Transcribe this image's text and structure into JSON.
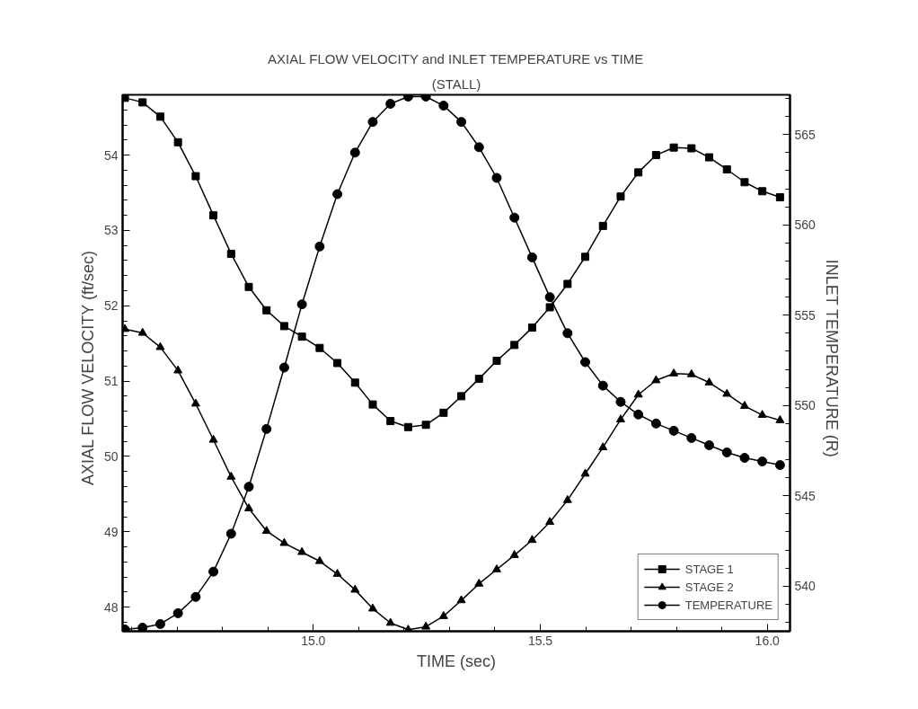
{
  "chart_data": {
    "type": "line",
    "title": "AXIAL FLOW VELOCITY and INLET TEMPERATURE vs TIME",
    "subtitle": "(STALL)",
    "xlabel": "TIME (sec)",
    "ylabel": "AXIAL FLOW VELOCITY   (ft/sec)",
    "y2label": "INLET TEMPERATURE   (R)",
    "x": [
      14.585,
      14.624,
      14.663,
      14.702,
      14.741,
      14.78,
      14.819,
      14.858,
      14.897,
      14.936,
      14.975,
      15.014,
      15.053,
      15.092,
      15.131,
      15.17,
      15.209,
      15.248,
      15.287,
      15.326,
      15.365,
      15.404,
      15.443,
      15.482,
      15.521,
      15.56,
      15.599,
      15.638,
      15.677,
      15.716,
      15.755,
      15.794,
      15.833,
      15.872,
      15.911,
      15.95,
      15.989,
      16.028
    ],
    "series": [
      {
        "name": "STAGE 1",
        "color": "#000000",
        "marker": "square",
        "values": [
          54.76,
          54.7,
          54.51,
          54.17,
          53.72,
          53.2,
          52.69,
          52.25,
          51.94,
          51.73,
          51.59,
          51.44,
          51.24,
          50.98,
          50.69,
          50.47,
          50.39,
          50.42,
          50.58,
          50.8,
          51.03,
          51.27,
          51.48,
          51.71,
          51.98,
          52.29,
          52.65,
          53.06,
          53.45,
          53.77,
          54.0,
          54.1,
          54.09,
          53.97,
          53.81,
          53.64,
          53.52,
          53.44
        ]
      },
      {
        "name": "STAGE 2",
        "color": "#000000",
        "marker": "triangle",
        "values": [
          51.69,
          51.64,
          51.45,
          51.14,
          50.7,
          50.22,
          49.73,
          49.31,
          49.01,
          48.85,
          48.73,
          48.61,
          48.44,
          48.23,
          47.98,
          47.79,
          47.7,
          47.74,
          47.88,
          48.09,
          48.31,
          48.5,
          48.69,
          48.89,
          49.13,
          49.42,
          49.77,
          50.12,
          50.49,
          50.82,
          51.01,
          51.1,
          51.09,
          50.98,
          50.83,
          50.67,
          50.55,
          50.48
        ]
      },
      {
        "name": "TEMPERATURE",
        "color": "#000000",
        "marker": "circle",
        "axis": "y2",
        "values": [
          537.6,
          537.7,
          537.9,
          538.5,
          539.4,
          540.8,
          542.9,
          545.5,
          548.7,
          552.1,
          555.6,
          558.8,
          561.7,
          564.0,
          565.7,
          566.7,
          567.1,
          567.1,
          566.6,
          565.7,
          564.3,
          562.6,
          560.4,
          558.2,
          556.0,
          554.0,
          552.4,
          551.1,
          550.2,
          549.5,
          549.0,
          548.6,
          548.2,
          547.8,
          547.4,
          547.1,
          546.9,
          546.7
        ]
      }
    ],
    "xlim": [
      14.58,
      16.05
    ],
    "ylim": [
      47.68,
      54.8
    ],
    "y2lim": [
      537.5,
      567.2
    ],
    "xticks": [
      {
        "value": 14.6,
        "label": null
      },
      {
        "value": 14.7,
        "label": null
      },
      {
        "value": 14.8,
        "label": null
      },
      {
        "value": 14.9,
        "label": null
      },
      {
        "value": 15.0,
        "label": "15.0"
      },
      {
        "value": 15.1,
        "label": null
      },
      {
        "value": 15.2,
        "label": null
      },
      {
        "value": 15.3,
        "label": null
      },
      {
        "value": 15.4,
        "label": null
      },
      {
        "value": 15.5,
        "label": "15.5"
      },
      {
        "value": 15.6,
        "label": null
      },
      {
        "value": 15.7,
        "label": null
      },
      {
        "value": 15.8,
        "label": null
      },
      {
        "value": 15.9,
        "label": null
      },
      {
        "value": 16.0,
        "label": "16.0"
      }
    ],
    "yticks": [
      {
        "value": 47.8,
        "label": null
      },
      48,
      {
        "value": 48.2,
        "label": null
      },
      {
        "value": 48.4,
        "label": null
      },
      {
        "value": 48.6,
        "label": null
      },
      {
        "value": 48.8,
        "label": null
      },
      49,
      {
        "value": 49.2,
        "label": null
      },
      {
        "value": 49.4,
        "label": null
      },
      {
        "value": 49.6,
        "label": null
      },
      {
        "value": 49.8,
        "label": null
      },
      50,
      {
        "value": 50.2,
        "label": null
      },
      {
        "value": 50.4,
        "label": null
      },
      {
        "value": 50.6,
        "label": null
      },
      {
        "value": 50.8,
        "label": null
      },
      51,
      {
        "value": 51.2,
        "label": null
      },
      {
        "value": 51.4,
        "label": null
      },
      {
        "value": 51.6,
        "label": null
      },
      {
        "value": 51.8,
        "label": null
      },
      52,
      {
        "value": 52.2,
        "label": null
      },
      {
        "value": 52.4,
        "label": null
      },
      {
        "value": 52.6,
        "label": null
      },
      {
        "value": 52.8,
        "label": null
      },
      53,
      {
        "value": 53.2,
        "label": null
      },
      {
        "value": 53.4,
        "label": null
      },
      {
        "value": 53.6,
        "label": null
      },
      {
        "value": 53.8,
        "label": null
      },
      54,
      {
        "value": 54.2,
        "label": null
      },
      {
        "value": 54.4,
        "label": null
      },
      {
        "value": 54.6,
        "label": null
      }
    ],
    "y2ticks": [
      {
        "value": 538,
        "label": null
      },
      {
        "value": 539,
        "label": null
      },
      540,
      {
        "value": 541,
        "label": null
      },
      {
        "value": 542,
        "label": null
      },
      {
        "value": 543,
        "label": null
      },
      {
        "value": 544,
        "label": null
      },
      545,
      {
        "value": 546,
        "label": null
      },
      {
        "value": 547,
        "label": null
      },
      {
        "value": 548,
        "label": null
      },
      {
        "value": 549,
        "label": null
      },
      550,
      {
        "value": 551,
        "label": null
      },
      {
        "value": 552,
        "label": null
      },
      {
        "value": 553,
        "label": null
      },
      {
        "value": 554,
        "label": null
      },
      555,
      {
        "value": 556,
        "label": null
      },
      {
        "value": 557,
        "label": null
      },
      {
        "value": 558,
        "label": null
      },
      {
        "value": 559,
        "label": null
      },
      560,
      {
        "value": 561,
        "label": null
      },
      {
        "value": 562,
        "label": null
      },
      {
        "value": 563,
        "label": null
      },
      {
        "value": 564,
        "label": null
      },
      565,
      {
        "value": 566,
        "label": null
      },
      {
        "value": 567,
        "label": null
      }
    ],
    "grid": false,
    "legend": "bottom right",
    "line_style": "solid"
  }
}
